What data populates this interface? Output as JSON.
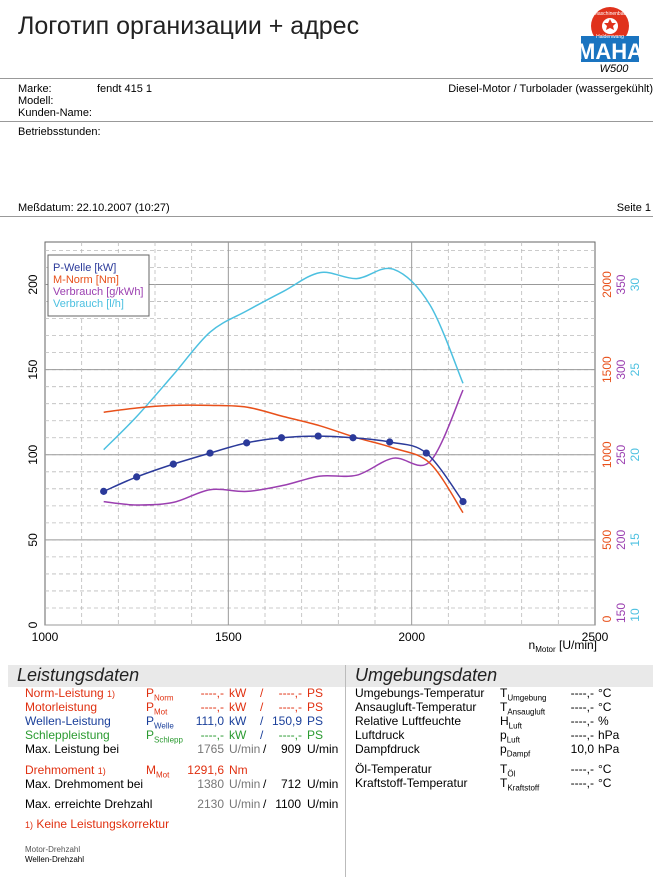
{
  "header": {
    "title": "Логотип организации + адрес",
    "logo_text_top": "Maschinenbau",
    "logo_text_bottom": "Haldenwang",
    "logo_word": "MAHA",
    "logo_model": "W500"
  },
  "vehicle": {
    "marke_label": "Marke:",
    "marke_value": "fendt 415 1",
    "modell_label": "Modell:",
    "kunde_label": "Kunden-Name:",
    "engine": "Diesel-Motor / Turbolader (wassergekühlt)",
    "hours_label": "Betriebsstunden:"
  },
  "measure": {
    "date": "Meßdatum: 22.10.2007 (10:27)",
    "page": "Seite 1"
  },
  "chart_data": {
    "type": "line",
    "x_ticks": [
      "1000",
      "1500",
      "2000",
      "2500"
    ],
    "xlim": [
      1000,
      2500
    ],
    "ylim": [
      0,
      225
    ],
    "y_ticks_left": [
      "0",
      "50",
      "100",
      "150",
      "200"
    ],
    "y_ticks_right_nm": [
      "0",
      "500",
      "1000",
      "1500",
      "2000"
    ],
    "y_ticks_right_gkwh": [
      "150",
      "200",
      "250",
      "300",
      "350"
    ],
    "y_ticks_right_lh": [
      "10",
      "15",
      "20",
      "25",
      "30"
    ],
    "xlabel_main": "n",
    "xlabel_sub": "Motor",
    "xlabel_unit": " [U/min]",
    "legend": [
      "P-Welle [kW]",
      "M-Norm [Nm]",
      "Verbrauch [g/kWh]",
      "Verbrauch [l/h]"
    ],
    "colors": {
      "p_welle": "#2b3a9a",
      "m_norm": "#e8501a",
      "verbrauch_g": "#9b3fb0",
      "verbrauch_l": "#4cc0e0"
    },
    "series": [
      {
        "name": "P-Welle [kW]",
        "x": [
          1160,
          1250,
          1350,
          1450,
          1550,
          1645,
          1745,
          1840,
          1940,
          2040,
          2140
        ],
        "y": [
          78.5,
          87,
          94.5,
          101,
          107,
          110,
          111,
          110,
          107.5,
          101,
          72.5
        ],
        "markers": true
      },
      {
        "name": "M-Norm [Nm]",
        "x": [
          1160,
          1250,
          1350,
          1450,
          1550,
          1650,
          1750,
          1850,
          1950,
          2050,
          2140
        ],
        "y": [
          125,
          127.5,
          129,
          129,
          128,
          122.5,
          117,
          110,
          104,
          95,
          66
        ]
      },
      {
        "name": "Verbrauch [g/kWh]",
        "x": [
          1160,
          1250,
          1350,
          1450,
          1550,
          1650,
          1750,
          1850,
          1950,
          2050,
          2140
        ],
        "y": [
          72.5,
          70.5,
          72,
          79.5,
          78.5,
          82,
          87.5,
          88,
          98,
          96,
          138
        ]
      },
      {
        "name": "Verbrauch [l/h]",
        "x": [
          1160,
          1250,
          1350,
          1450,
          1550,
          1650,
          1750,
          1850,
          1950,
          2050,
          2140
        ],
        "y": [
          103,
          122.5,
          147,
          172,
          184.5,
          196,
          207,
          203.5,
          209,
          188,
          142
        ]
      }
    ],
    "grid": true
  },
  "leistung": {
    "title": "Leistungsdaten",
    "rows": [
      {
        "label": "Norm-Leistung 1)",
        "sym": "P",
        "sub": "Norm",
        "v1": "----,-",
        "u1": "kW",
        "sep": "/",
        "v2": "----,-",
        "u2": "PS"
      },
      {
        "label": "Motorleistung",
        "sym": "P",
        "sub": "Mot",
        "v1": "----,-",
        "u1": "kW",
        "sep": "/",
        "v2": "----,-",
        "u2": "PS"
      },
      {
        "label": "Wellen-Leistung",
        "sym": "P",
        "sub": "Welle",
        "v1": "111,0",
        "u1": "kW",
        "sep": "/",
        "v2": "150,9",
        "u2": "PS"
      },
      {
        "label": "Schleppleistung",
        "sym": "P",
        "sub": "Schlepp",
        "v1": "----,-",
        "u1": "kW",
        "sep": "/",
        "v2": "----,-",
        "u2": "PS"
      }
    ],
    "max_leistung": {
      "label": "Max. Leistung bei",
      "v1": "1765",
      "u1": "U/min",
      "sep": "/",
      "v2": "909",
      "u2": "U/min"
    },
    "drehmoment": {
      "label": "Drehmoment 1)",
      "sym": "M",
      "sub": "Mot",
      "v1": "1291,6",
      "u1": "Nm"
    },
    "max_drehmoment": {
      "label": "Max. Drehmoment bei",
      "v1": "1380",
      "u1": "U/min",
      "sep": "/",
      "v2": "712",
      "u2": "U/min"
    },
    "max_drehzahl": {
      "label": "Max. erreichte Drehzahl",
      "v1": "2130",
      "u1": "U/min",
      "sep": "/",
      "v2": "1100",
      "u2": "U/min"
    },
    "footnote": "1) Keine Leistungskorrektur",
    "note1": "Motor-Drehzahl",
    "note2": "Wellen-Drehzahl"
  },
  "umgebung": {
    "title": "Umgebungsdaten",
    "rows": [
      {
        "label": "Umgebungs-Temperatur",
        "sym": "T",
        "sub": "Umgebung",
        "val": "----,-",
        "unit": "°C"
      },
      {
        "label": "Ansaugluft-Temperatur",
        "sym": "T",
        "sub": "Ansaugluft",
        "val": "----,-",
        "unit": "°C"
      },
      {
        "label": "Relative Luftfeuchte",
        "sym": "H",
        "sub": "Luft",
        "val": "----,-",
        "unit": "%"
      },
      {
        "label": "Luftdruck",
        "sym": "p",
        "sub": "Luft",
        "val": "----,-",
        "unit": "hPa"
      },
      {
        "label": "Dampfdruck",
        "sym": "p",
        "sub": "Dampf",
        "val": "10,0",
        "unit": "hPa"
      },
      {
        "label": "Öl-Temperatur",
        "sym": "T",
        "sub": "Öl",
        "val": "----,-",
        "unit": "°C"
      },
      {
        "label": "Kraftstoff-Temperatur",
        "sym": "T",
        "sub": "Kraftstoff",
        "val": "----,-",
        "unit": "°C"
      }
    ]
  }
}
